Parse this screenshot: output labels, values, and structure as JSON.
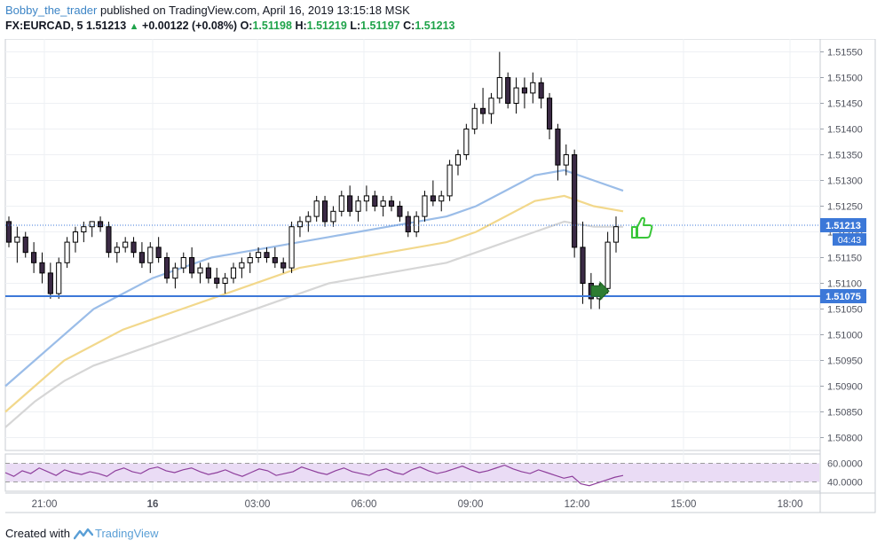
{
  "header": {
    "author": "Bobby_the_trader",
    "published": "published on TradingView.com, April 16, 2019 13:15:18 MSK",
    "symbol": "FX:EURCAD, 5",
    "last": "1.51213",
    "change": "+0.00122 (+0.08%)",
    "open_label": "O:",
    "open": "1.51198",
    "high_label": "H:",
    "high": "1.51219",
    "low_label": "L:",
    "low": "1.51197",
    "close_label": "C:",
    "close": "1.51213"
  },
  "footer": {
    "created_with": "Created with",
    "brand": "TradingView"
  },
  "price_tags": {
    "last_price": "1.51213",
    "countdown": "04:43",
    "level": "1.51075"
  },
  "colors": {
    "up": "#1fa34a",
    "candle_body": "#000000",
    "candle_fill_up": "#ffffff",
    "ma_fast": "#9bbde8",
    "ma_mid": "#f2d88c",
    "ma_slow": "#d6d6d6",
    "level_line": "#3c78d8",
    "last_price_tag": "#3c78d8",
    "rsi_line": "#8e3f9c",
    "rsi_band": "#eadcf5"
  },
  "chart_data": {
    "type": "candlestick",
    "symbol": "FX:EURCAD",
    "interval": "5",
    "y_axis": {
      "ticks": [
        "1.51550",
        "1.51500",
        "1.51450",
        "1.51400",
        "1.51350",
        "1.51300",
        "1.51250",
        "1.51200",
        "1.51150",
        "1.51100",
        "1.51050",
        "1.51000",
        "1.50950",
        "1.50900",
        "1.50850",
        "1.50800"
      ],
      "range": [
        1.50775,
        1.51575
      ]
    },
    "x_axis": {
      "ticks": [
        "21:00",
        "16",
        "03:00",
        "06:00",
        "09:00",
        "12:00",
        "15:00",
        "18:00"
      ]
    },
    "horizontal_level": 1.51075,
    "last_price": 1.51213,
    "candles": [
      [
        1.5122,
        1.5123,
        1.5117,
        1.5118
      ],
      [
        1.5118,
        1.5121,
        1.5114,
        1.5119
      ],
      [
        1.5119,
        1.512,
        1.5115,
        1.5116
      ],
      [
        1.5116,
        1.5118,
        1.5112,
        1.5114
      ],
      [
        1.5114,
        1.5116,
        1.511,
        1.5112
      ],
      [
        1.5112,
        1.5114,
        1.5107,
        1.5108
      ],
      [
        1.5108,
        1.5115,
        1.5107,
        1.5114
      ],
      [
        1.5114,
        1.5119,
        1.5113,
        1.5118
      ],
      [
        1.5118,
        1.5121,
        1.5116,
        1.512
      ],
      [
        1.512,
        1.5122,
        1.5118,
        1.5121
      ],
      [
        1.5121,
        1.5122,
        1.5119,
        1.5122
      ],
      [
        1.5122,
        1.5123,
        1.512,
        1.5121
      ],
      [
        1.5121,
        1.5122,
        1.5115,
        1.5116
      ],
      [
        1.5116,
        1.5118,
        1.5114,
        1.5117
      ],
      [
        1.5117,
        1.5119,
        1.5116,
        1.5118
      ],
      [
        1.5118,
        1.5119,
        1.5115,
        1.5116
      ],
      [
        1.5116,
        1.5118,
        1.5113,
        1.5114
      ],
      [
        1.5114,
        1.5118,
        1.5112,
        1.5117
      ],
      [
        1.5117,
        1.5119,
        1.5114,
        1.5115
      ],
      [
        1.5115,
        1.5116,
        1.511,
        1.5111
      ],
      [
        1.5111,
        1.5114,
        1.5109,
        1.5113
      ],
      [
        1.5113,
        1.5116,
        1.5112,
        1.5115
      ],
      [
        1.5115,
        1.5117,
        1.5111,
        1.5112
      ],
      [
        1.5112,
        1.5114,
        1.511,
        1.5113
      ],
      [
        1.5113,
        1.5114,
        1.511,
        1.5111
      ],
      [
        1.5111,
        1.5113,
        1.5109,
        1.511
      ],
      [
        1.511,
        1.5112,
        1.5108,
        1.5111
      ],
      [
        1.5111,
        1.5114,
        1.511,
        1.5113
      ],
      [
        1.5113,
        1.5115,
        1.5111,
        1.5114
      ],
      [
        1.5114,
        1.5116,
        1.5112,
        1.5115
      ],
      [
        1.5115,
        1.5117,
        1.5114,
        1.5116
      ],
      [
        1.5116,
        1.5117,
        1.5114,
        1.5115
      ],
      [
        1.5115,
        1.5117,
        1.5113,
        1.5114
      ],
      [
        1.5114,
        1.5115,
        1.5112,
        1.5113
      ],
      [
        1.5113,
        1.5122,
        1.5112,
        1.5121
      ],
      [
        1.5121,
        1.5123,
        1.5119,
        1.5122
      ],
      [
        1.5122,
        1.5124,
        1.512,
        1.5123
      ],
      [
        1.5123,
        1.5127,
        1.5122,
        1.5126
      ],
      [
        1.5126,
        1.5127,
        1.5121,
        1.5122
      ],
      [
        1.5122,
        1.5125,
        1.5121,
        1.5124
      ],
      [
        1.5124,
        1.5128,
        1.5123,
        1.5127
      ],
      [
        1.5127,
        1.5129,
        1.5123,
        1.5124
      ],
      [
        1.5124,
        1.5127,
        1.5122,
        1.5126
      ],
      [
        1.5126,
        1.5129,
        1.5124,
        1.5127
      ],
      [
        1.5127,
        1.5128,
        1.5124,
        1.5125
      ],
      [
        1.5125,
        1.5127,
        1.5123,
        1.5126
      ],
      [
        1.5126,
        1.5127,
        1.5124,
        1.5125
      ],
      [
        1.5125,
        1.5126,
        1.5122,
        1.5123
      ],
      [
        1.5123,
        1.5124,
        1.5119,
        1.512
      ],
      [
        1.512,
        1.5124,
        1.5119,
        1.5123
      ],
      [
        1.5123,
        1.5128,
        1.5122,
        1.5127
      ],
      [
        1.5127,
        1.513,
        1.5125,
        1.5126
      ],
      [
        1.5126,
        1.5128,
        1.5124,
        1.5127
      ],
      [
        1.5127,
        1.5134,
        1.5126,
        1.5133
      ],
      [
        1.5133,
        1.5136,
        1.5131,
        1.5135
      ],
      [
        1.5135,
        1.5141,
        1.5134,
        1.514
      ],
      [
        1.514,
        1.5145,
        1.5139,
        1.5144
      ],
      [
        1.5144,
        1.5148,
        1.5141,
        1.5143
      ],
      [
        1.5143,
        1.5147,
        1.5141,
        1.5146
      ],
      [
        1.5146,
        1.5155,
        1.5145,
        1.515
      ],
      [
        1.515,
        1.5151,
        1.5144,
        1.5145
      ],
      [
        1.5145,
        1.515,
        1.5143,
        1.5148
      ],
      [
        1.5148,
        1.515,
        1.5144,
        1.5147
      ],
      [
        1.5147,
        1.5151,
        1.5145,
        1.5149
      ],
      [
        1.5149,
        1.515,
        1.5144,
        1.5146
      ],
      [
        1.5146,
        1.5147,
        1.5138,
        1.514
      ],
      [
        1.514,
        1.5141,
        1.513,
        1.5133
      ],
      [
        1.5133,
        1.5137,
        1.5131,
        1.5135
      ],
      [
        1.5135,
        1.5136,
        1.5115,
        1.5117
      ],
      [
        1.5117,
        1.5122,
        1.5106,
        1.511
      ],
      [
        1.511,
        1.5112,
        1.5105,
        1.5107
      ],
      [
        1.5107,
        1.511,
        1.5105,
        1.5109
      ],
      [
        1.5109,
        1.512,
        1.5108,
        1.5118
      ],
      [
        1.5118,
        1.5123,
        1.5116,
        1.5121
      ]
    ],
    "ma_fast": [
      1.509,
      1.5095,
      1.51,
      1.5105,
      1.5108,
      1.5111,
      1.5113,
      1.5115,
      1.5116,
      1.5117,
      1.5118,
      1.5119,
      1.512,
      1.5121,
      1.5122,
      1.5123,
      1.5125,
      1.5128,
      1.5131,
      1.5132,
      1.513,
      1.5128
    ],
    "ma_mid": [
      1.5085,
      1.509,
      1.5095,
      1.5098,
      1.5101,
      1.5103,
      1.5105,
      1.5107,
      1.5109,
      1.5111,
      1.5113,
      1.5114,
      1.5115,
      1.5116,
      1.5117,
      1.5118,
      1.512,
      1.5123,
      1.5126,
      1.5127,
      1.5125,
      1.5124
    ],
    "ma_slow": [
      1.5082,
      1.5087,
      1.5091,
      1.5094,
      1.5096,
      1.5098,
      1.51,
      1.5102,
      1.5104,
      1.5106,
      1.5108,
      1.511,
      1.5111,
      1.5112,
      1.5113,
      1.5114,
      1.5116,
      1.5118,
      1.512,
      1.5122,
      1.5121,
      1.5121
    ],
    "rsi": {
      "ticks": [
        "60.0000",
        "40.0000"
      ],
      "range": [
        30,
        70
      ],
      "band": [
        40,
        60
      ],
      "values": [
        50,
        46,
        52,
        49,
        55,
        51,
        47,
        53,
        50,
        48,
        51,
        49,
        46,
        52,
        55,
        51,
        49,
        54,
        56,
        52,
        50,
        53,
        55,
        51,
        48,
        50,
        53,
        49,
        46,
        50,
        54,
        52,
        47,
        49,
        51,
        56,
        53,
        50,
        48,
        52,
        55,
        51,
        49,
        47,
        52,
        54,
        50,
        48,
        53,
        56,
        52,
        49,
        51,
        54,
        57,
        53,
        50,
        52,
        55,
        58,
        54,
        51,
        49,
        53,
        50,
        47,
        44,
        46,
        38,
        36,
        39,
        42,
        45,
        47
      ]
    }
  }
}
